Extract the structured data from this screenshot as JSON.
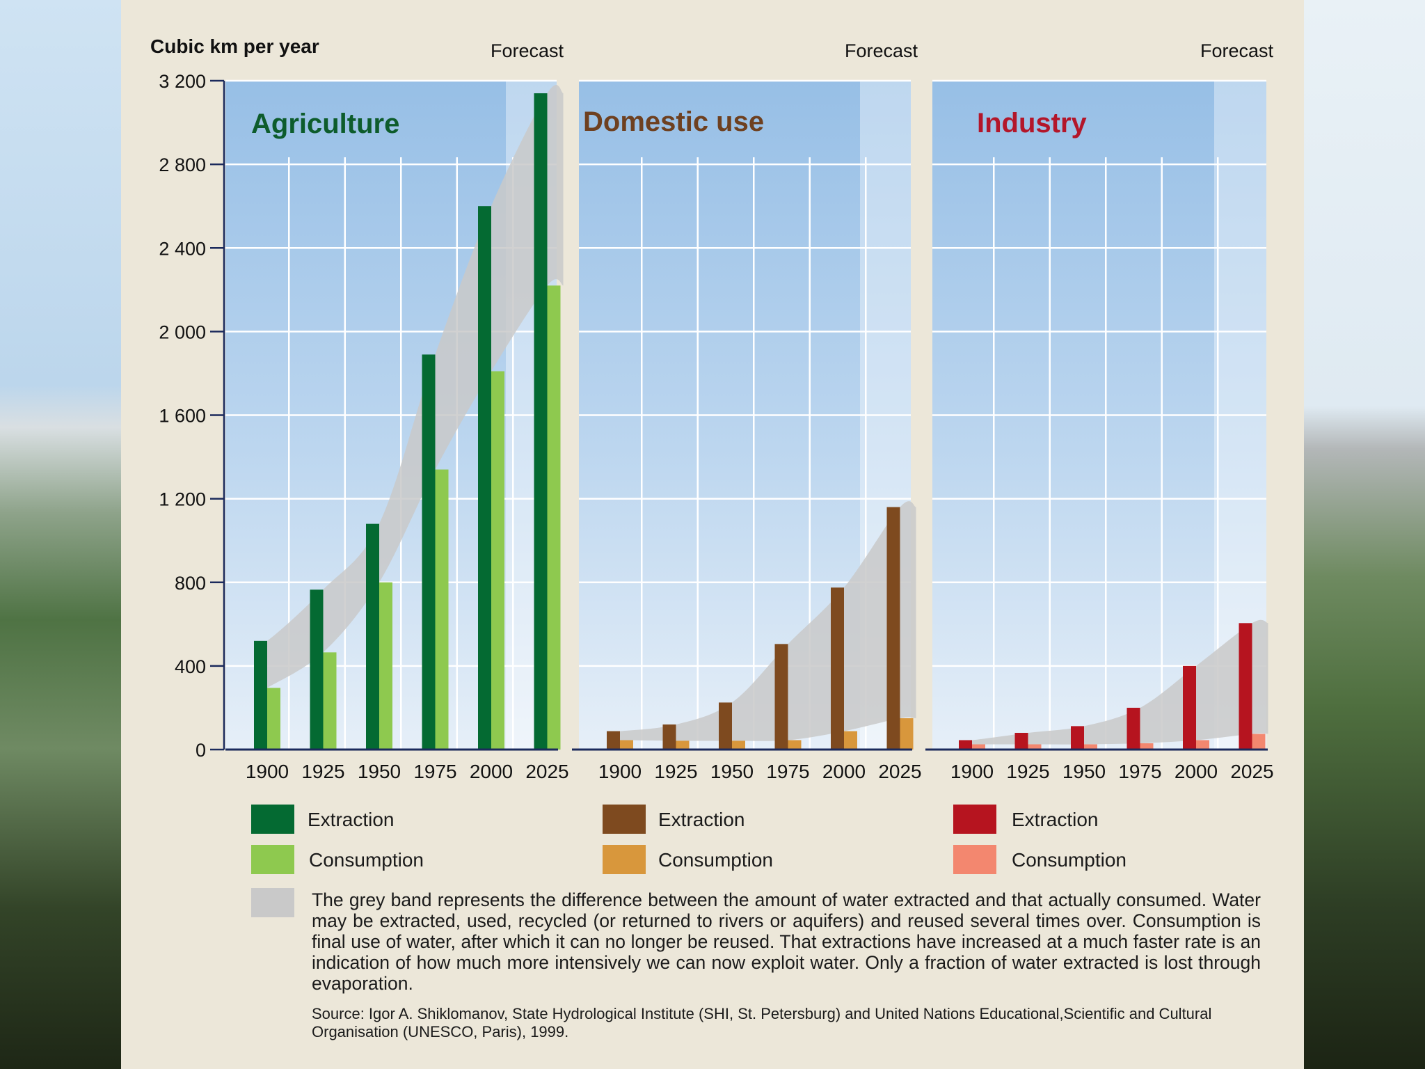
{
  "chart_data": {
    "type": "bar",
    "y_axis_label": "Cubic km per year",
    "ylim": [
      0,
      3200
    ],
    "y_ticks": [
      "0",
      "400",
      "800",
      "1 200",
      "1 600",
      "2 000",
      "2 400",
      "2 800",
      "3 200"
    ],
    "forecast_label": "Forecast",
    "categories": [
      "1900",
      "1925",
      "1950",
      "1975",
      "2000",
      "2025"
    ],
    "panels": [
      {
        "title": "Agriculture",
        "title_color": "#0d5c2c",
        "extraction_color": "#046a32",
        "consumption_color": "#8ec94f",
        "series": [
          {
            "name": "Extraction",
            "values": [
              520,
              765,
              1080,
              1890,
              2600,
              3140
            ]
          },
          {
            "name": "Consumption",
            "values": [
              295,
              465,
              800,
              1340,
              1810,
              2220
            ]
          }
        ]
      },
      {
        "title": "Domestic use",
        "title_color": "#6e4020",
        "extraction_color": "#7e4a1f",
        "consumption_color": "#d8973c",
        "series": [
          {
            "name": "Extraction",
            "values": [
              88,
              120,
              225,
              505,
              775,
              1160
            ]
          },
          {
            "name": "Consumption",
            "values": [
              45,
              42,
              42,
              45,
              88,
              150
            ]
          }
        ]
      },
      {
        "title": "Industry",
        "title_color": "#b3162a",
        "extraction_color": "#b6141f",
        "consumption_color": "#f3876f",
        "series": [
          {
            "name": "Extraction",
            "values": [
              45,
              80,
              112,
              200,
              400,
              605
            ]
          },
          {
            "name": "Consumption",
            "values": [
              25,
              25,
              25,
              30,
              45,
              75
            ]
          }
        ]
      }
    ]
  },
  "legend": [
    {
      "extraction": "Extraction",
      "consumption": "Consumption"
    },
    {
      "extraction": "Extraction",
      "consumption": "Consumption"
    },
    {
      "extraction": "Extraction",
      "consumption": "Consumption"
    }
  ],
  "band_color": "#c9c9c9",
  "note": "The grey band represents the difference between the amount of water extracted and that actually consumed. Water may be extracted, used, recycled (or returned to rivers or aquifers) and reused several times over. Consumption is final use of water, after which it can no longer be reused. That extractions have increased at a much faster rate is an indication of how much more intensively we can now exploit water. Only a fraction of water extracted is lost through evaporation.",
  "source": "Source: Igor A. Shiklomanov, State Hydrological Institute (SHI, St. Petersburg) and United Nations Educational,Scientific and Cultural Organisation (UNESCO, Paris), 1999."
}
